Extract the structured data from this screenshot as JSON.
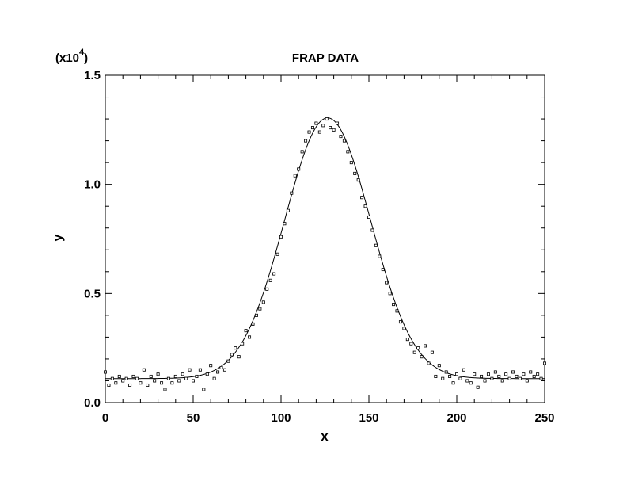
{
  "chart_data": {
    "type": "scatter",
    "title": "FRAP DATA",
    "xlabel": "x",
    "ylabel": "y",
    "y_multiplier": "(x10",
    "y_multiplier_exp": "4",
    "y_multiplier_close": ")",
    "xlim": [
      0,
      250
    ],
    "ylim": [
      0,
      1.5
    ],
    "x_ticks": [
      0,
      50,
      100,
      150,
      200,
      250
    ],
    "x_tick_labels": [
      "0",
      "50",
      "100",
      "150",
      "200",
      "250"
    ],
    "y_ticks": [
      0,
      0.5,
      1.0,
      1.5
    ],
    "y_tick_labels": [
      "0.0",
      "0.5",
      "1.0",
      "1.5"
    ],
    "grid": false,
    "colors": {
      "marks": "#000000",
      "background": "#ffffff"
    },
    "series": [
      {
        "type": "scatter",
        "marker": "open-square",
        "points": [
          [
            0,
            0.14
          ],
          [
            2,
            0.08
          ],
          [
            4,
            0.11
          ],
          [
            6,
            0.09
          ],
          [
            8,
            0.12
          ],
          [
            10,
            0.1
          ],
          [
            12,
            0.11
          ],
          [
            14,
            0.08
          ],
          [
            16,
            0.12
          ],
          [
            18,
            0.11
          ],
          [
            20,
            0.09
          ],
          [
            22,
            0.15
          ],
          [
            24,
            0.08
          ],
          [
            26,
            0.12
          ],
          [
            28,
            0.1
          ],
          [
            30,
            0.13
          ],
          [
            32,
            0.09
          ],
          [
            34,
            0.06
          ],
          [
            36,
            0.11
          ],
          [
            38,
            0.09
          ],
          [
            40,
            0.12
          ],
          [
            42,
            0.1
          ],
          [
            44,
            0.13
          ],
          [
            46,
            0.11
          ],
          [
            48,
            0.15
          ],
          [
            50,
            0.1
          ],
          [
            52,
            0.12
          ],
          [
            54,
            0.15
          ],
          [
            56,
            0.06
          ],
          [
            58,
            0.13
          ],
          [
            60,
            0.17
          ],
          [
            62,
            0.11
          ],
          [
            64,
            0.14
          ],
          [
            66,
            0.16
          ],
          [
            68,
            0.15
          ],
          [
            70,
            0.19
          ],
          [
            72,
            0.22
          ],
          [
            74,
            0.25
          ],
          [
            76,
            0.21
          ],
          [
            78,
            0.27
          ],
          [
            80,
            0.33
          ],
          [
            82,
            0.3
          ],
          [
            84,
            0.36
          ],
          [
            86,
            0.4
          ],
          [
            88,
            0.43
          ],
          [
            90,
            0.46
          ],
          [
            92,
            0.52
          ],
          [
            94,
            0.56
          ],
          [
            96,
            0.59
          ],
          [
            98,
            0.68
          ],
          [
            100,
            0.76
          ],
          [
            102,
            0.82
          ],
          [
            104,
            0.88
          ],
          [
            106,
            0.96
          ],
          [
            108,
            1.04
          ],
          [
            110,
            1.07
          ],
          [
            112,
            1.15
          ],
          [
            114,
            1.2
          ],
          [
            116,
            1.24
          ],
          [
            118,
            1.26
          ],
          [
            120,
            1.28
          ],
          [
            122,
            1.24
          ],
          [
            124,
            1.27
          ],
          [
            126,
            1.3
          ],
          [
            128,
            1.26
          ],
          [
            130,
            1.25
          ],
          [
            132,
            1.28
          ],
          [
            134,
            1.22
          ],
          [
            136,
            1.2
          ],
          [
            138,
            1.15
          ],
          [
            140,
            1.1
          ],
          [
            142,
            1.05
          ],
          [
            144,
            1.02
          ],
          [
            146,
            0.94
          ],
          [
            148,
            0.9
          ],
          [
            150,
            0.85
          ],
          [
            152,
            0.79
          ],
          [
            154,
            0.72
          ],
          [
            156,
            0.67
          ],
          [
            158,
            0.61
          ],
          [
            160,
            0.55
          ],
          [
            162,
            0.5
          ],
          [
            164,
            0.45
          ],
          [
            166,
            0.42
          ],
          [
            168,
            0.37
          ],
          [
            170,
            0.34
          ],
          [
            172,
            0.29
          ],
          [
            174,
            0.27
          ],
          [
            176,
            0.23
          ],
          [
            178,
            0.25
          ],
          [
            180,
            0.21
          ],
          [
            182,
            0.26
          ],
          [
            184,
            0.18
          ],
          [
            186,
            0.23
          ],
          [
            188,
            0.12
          ],
          [
            190,
            0.17
          ],
          [
            192,
            0.11
          ],
          [
            194,
            0.14
          ],
          [
            196,
            0.12
          ],
          [
            198,
            0.09
          ],
          [
            200,
            0.13
          ],
          [
            202,
            0.11
          ],
          [
            204,
            0.15
          ],
          [
            206,
            0.1
          ],
          [
            208,
            0.09
          ],
          [
            210,
            0.13
          ],
          [
            212,
            0.07
          ],
          [
            214,
            0.12
          ],
          [
            216,
            0.1
          ],
          [
            218,
            0.13
          ],
          [
            220,
            0.11
          ],
          [
            222,
            0.14
          ],
          [
            224,
            0.12
          ],
          [
            226,
            0.1
          ],
          [
            228,
            0.13
          ],
          [
            230,
            0.11
          ],
          [
            232,
            0.14
          ],
          [
            234,
            0.12
          ],
          [
            236,
            0.11
          ],
          [
            238,
            0.13
          ],
          [
            240,
            0.1
          ],
          [
            242,
            0.14
          ],
          [
            244,
            0.12
          ],
          [
            246,
            0.13
          ],
          [
            248,
            0.11
          ],
          [
            250,
            0.18
          ]
        ]
      },
      {
        "type": "line",
        "style": "solid",
        "baseline": 0.11,
        "amplitude": 1.195,
        "center": 126.5,
        "sigma": 24.5
      }
    ]
  }
}
